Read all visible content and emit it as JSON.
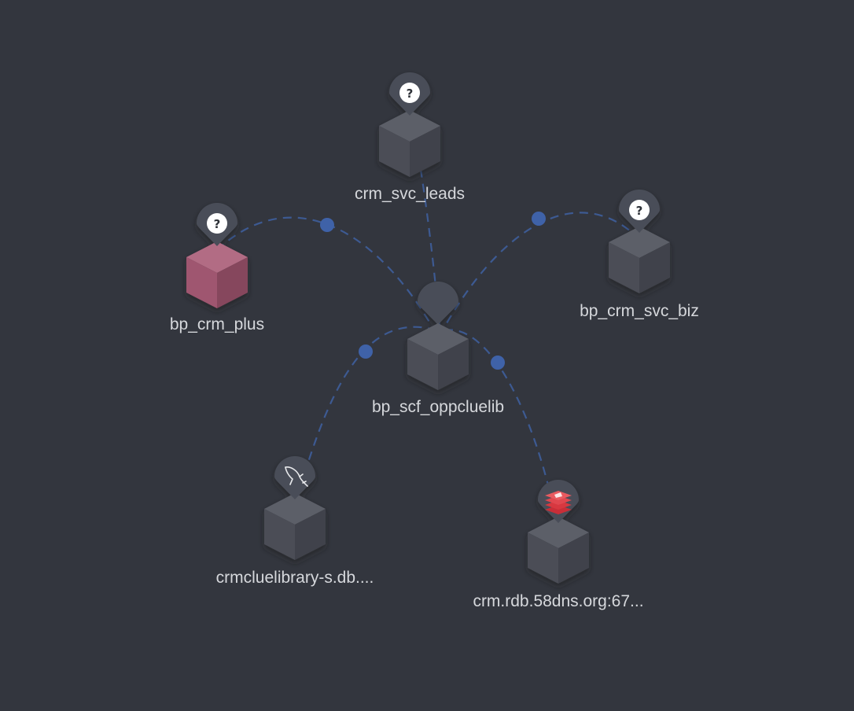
{
  "diagram": {
    "center_node": {
      "label": "bp_scf_oppcluelib",
      "icon": "pin-placeholder-icon",
      "color": "#555861"
    },
    "nodes": [
      {
        "id": "crm_svc_leads",
        "label": "crm_svc_leads",
        "icon": "question-mark-icon",
        "color": "#555861"
      },
      {
        "id": "bp_crm_plus",
        "label": "bp_crm_plus",
        "icon": "question-mark-icon",
        "color": "#a15a73"
      },
      {
        "id": "bp_crm_svc_biz",
        "label": "bp_crm_svc_biz",
        "icon": "question-mark-icon",
        "color": "#555861"
      },
      {
        "id": "crmcluelibrary",
        "label": "crmcluelibrary-s.db....",
        "icon": "mysql-dolphin-icon",
        "color": "#555861"
      },
      {
        "id": "crm_rdb",
        "label": "crm.rdb.58dns.org:67...",
        "icon": "redis-icon",
        "color": "#555861"
      }
    ],
    "edges": [
      {
        "from": "crm_svc_leads",
        "to": "bp_scf_oppcluelib"
      },
      {
        "from": "bp_crm_plus",
        "to": "bp_scf_oppcluelib"
      },
      {
        "from": "bp_crm_svc_biz",
        "to": "bp_scf_oppcluelib"
      },
      {
        "from": "bp_scf_oppcluelib",
        "to": "crmcluelibrary"
      },
      {
        "from": "bp_scf_oppcluelib",
        "to": "crm_rdb"
      }
    ],
    "colors": {
      "background": "#33363e",
      "edge": "#3d5a92",
      "edge_dot": "#3f62a8",
      "redis": "#d7373f"
    },
    "question_glyph": "?"
  }
}
